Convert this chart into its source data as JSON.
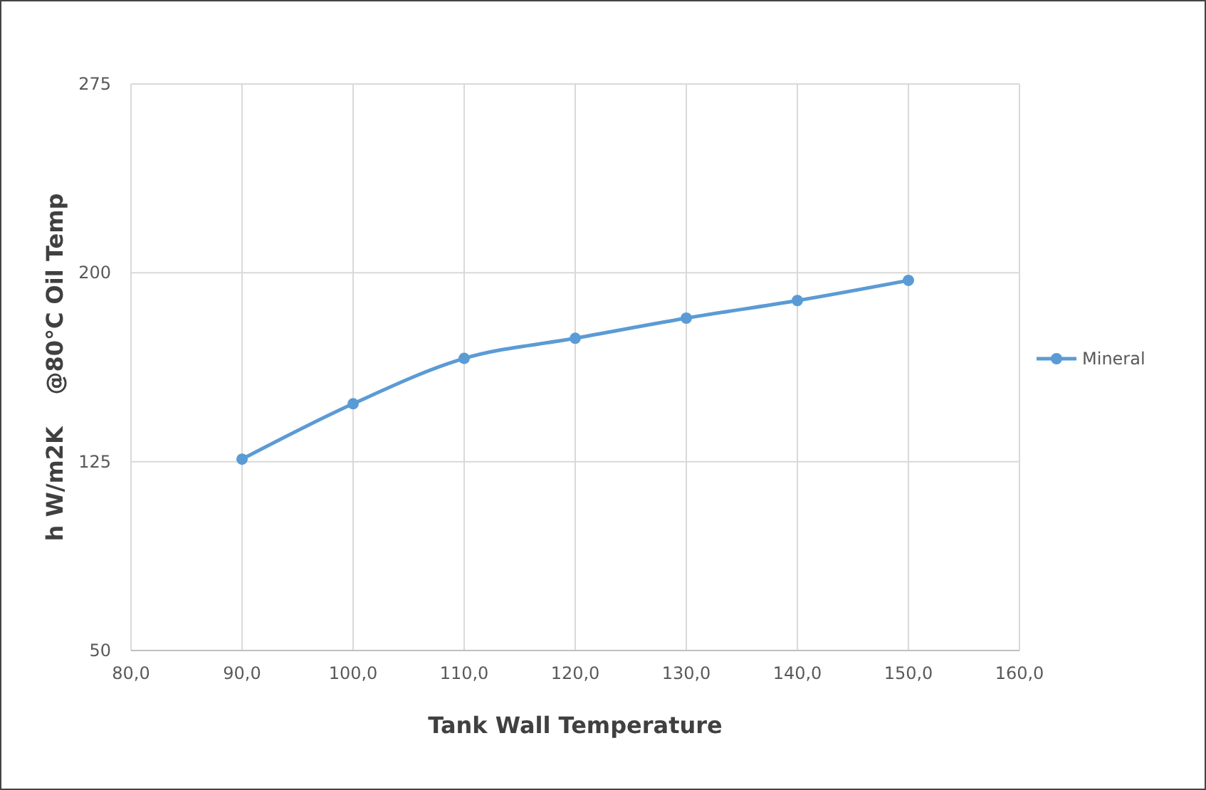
{
  "chart_data": {
    "type": "line",
    "xlabel": "Tank Wall Temperature",
    "ylabel": "h W/m2K    @80°C Oil Temp",
    "x": [
      90,
      100,
      110,
      120,
      130,
      140,
      150
    ],
    "series": [
      {
        "name": "Mineral",
        "color": "#5b9bd5",
        "values": [
          126,
          148,
          166,
          174,
          182,
          189,
          197
        ]
      }
    ],
    "xlim": [
      80,
      160
    ],
    "xticks": [
      {
        "value": 80,
        "label": "80,0"
      },
      {
        "value": 90,
        "label": "90,0"
      },
      {
        "value": 100,
        "label": "100,0"
      },
      {
        "value": 110,
        "label": "110,0"
      },
      {
        "value": 120,
        "label": "120,0"
      },
      {
        "value": 130,
        "label": "130,0"
      },
      {
        "value": 140,
        "label": "140,0"
      },
      {
        "value": 150,
        "label": "150,0"
      },
      {
        "value": 160,
        "label": "160,0"
      }
    ],
    "ylim": [
      50,
      275
    ],
    "yticks": [
      50,
      125,
      200,
      275
    ],
    "grid": true,
    "legend": "right",
    "marker": "circle",
    "line_style": "solid"
  }
}
